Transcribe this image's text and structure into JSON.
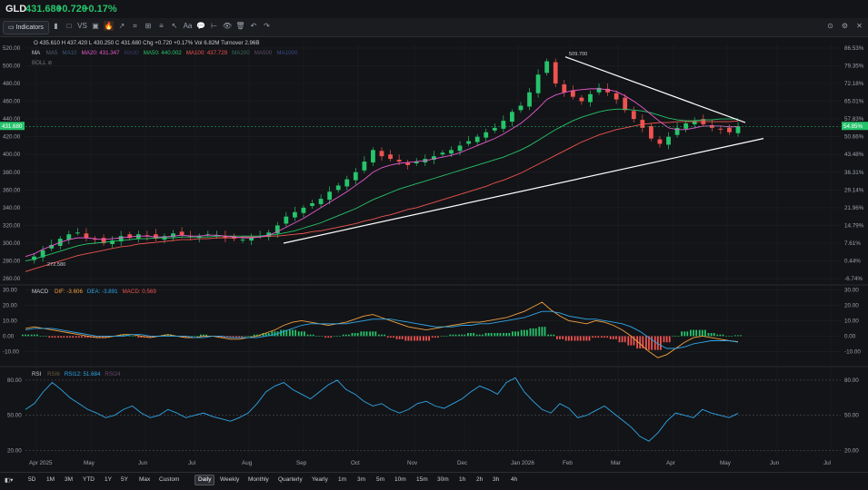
{
  "header": {
    "ticker": "GLD",
    "last": "431.680",
    "change": "+0.720",
    "change_pct": "+0.17%"
  },
  "toolbar": {
    "indicators_label": "Indicators",
    "icons": [
      "candle-type-icon",
      "square-icon",
      "compare-icon",
      "layout-icon",
      "fire-icon",
      "line-tool-icon",
      "crop-icon",
      "pattern-icon",
      "text-indent-icon",
      "cursor-icon",
      "text-tool-icon",
      "comment-icon",
      "ruler-icon",
      "eye-icon",
      "trash-icon",
      "undo-icon",
      "redo-icon"
    ],
    "right_icons": [
      "camera-icon",
      "settings-icon",
      "close-icon"
    ]
  },
  "legend": {
    "ohlc": "O 435.610  H 437.420  L 430.250  C 431.680  Chg +0.720  +0.17%  Vol 6.82M  Turnover 2.96B",
    "ma_label": "MA",
    "ma_items": [
      {
        "text": "MA5",
        "color": "#5a5a78"
      },
      {
        "text": "MA10",
        "color": "#3a5a7a"
      },
      {
        "text": "MA20: 431.347",
        "color": "#e85ad0"
      },
      {
        "text": "MA30",
        "color": "#3a3a6a"
      },
      {
        "text": "MA50: 440.002",
        "color": "#26c46b"
      },
      {
        "text": "MA100: 437.729",
        "color": "#ef5350"
      },
      {
        "text": "MA200",
        "color": "#3a6a5a"
      },
      {
        "text": "MA500",
        "color": "#5a4a6a"
      },
      {
        "text": "MA1000",
        "color": "#3a4a8a"
      }
    ],
    "boll": "BOLL",
    "macd_label": "MACD",
    "macd_items": [
      {
        "text": "DIF: -3.606",
        "color": "#f0a040"
      },
      {
        "text": "DEA: -3.891",
        "color": "#2ea6e8"
      },
      {
        "text": "MACD: 0.569",
        "color": "#ef5350"
      }
    ],
    "rsi_label": "RSI",
    "rsi_items": [
      {
        "text": "RSI6",
        "color": "#6a5a40"
      },
      {
        "text": "RSI12: 51.684",
        "color": "#2ea6e8"
      },
      {
        "text": "RSI24",
        "color": "#6a4a6a"
      }
    ]
  },
  "periods": [
    "5D",
    "1M",
    "3M",
    "YTD",
    "1Y",
    "5Y",
    "Max",
    "Custom",
    "Daily",
    "Weekly",
    "Monthly",
    "Quarterly",
    "Yearly",
    "1m",
    "3m",
    "5m",
    "10m",
    "15m",
    "30m",
    "1h",
    "2h",
    "3h",
    "4h"
  ],
  "active_period": "Daily",
  "colors": {
    "up": "#26c46b",
    "down": "#ef5350",
    "grid": "#1e2126",
    "trend": "#ffffff"
  },
  "chart_data": [
    {
      "type": "candlestick",
      "name": "price",
      "y_ticks": [
        260,
        280,
        300,
        320,
        340,
        360,
        380,
        400,
        420,
        440,
        460,
        480,
        500,
        520
      ],
      "ylim": [
        255,
        525
      ],
      "right_pct_ticks": [
        "86.53%",
        "79.35%",
        "72.18%",
        "65.01%",
        "57.83%",
        "50.66%",
        "43.48%",
        "36.31%",
        "29.14%",
        "21.96%",
        "14.79%",
        "7.61%",
        "0.44%",
        "-6.74%"
      ],
      "last_price": "431.680",
      "last_pct": "54.85%",
      "annotations": [
        {
          "text": "509.700",
          "x": "2026-01-29",
          "y": 509.7
        },
        {
          "text": "272.580",
          "x": "2025-04-03",
          "y": 272.58
        }
      ],
      "x_labels": [
        "Apr 2025",
        "May",
        "Jun",
        "Jul",
        "Aug",
        "Sep",
        "Oct",
        "Nov",
        "Dec",
        "Jan 2026",
        "Feb",
        "Mar",
        "Apr",
        "May",
        "Jun",
        "Jul"
      ],
      "close_series_approx": [
        282,
        285,
        292,
        298,
        305,
        310,
        312,
        306,
        304,
        300,
        303,
        308,
        306,
        310,
        308,
        305,
        308,
        311,
        309,
        307,
        308,
        310,
        309,
        306,
        305,
        304,
        306,
        308,
        312,
        320,
        330,
        335,
        340,
        345,
        350,
        358,
        365,
        372,
        380,
        392,
        405,
        398,
        395,
        392,
        388,
        392,
        395,
        398,
        402,
        405,
        410,
        415,
        420,
        425,
        430,
        438,
        448,
        455,
        470,
        490,
        505,
        480,
        470,
        465,
        460,
        468,
        475,
        470,
        462,
        450,
        440,
        430,
        418,
        412,
        420,
        430,
        435,
        438,
        434,
        430,
        428,
        425,
        431.68
      ],
      "ma20_approx": [
        285,
        288,
        293,
        297,
        301,
        304,
        306,
        306,
        305,
        304,
        305,
        306,
        307,
        308,
        308,
        307,
        307,
        308,
        309,
        308,
        308,
        309,
        309,
        308,
        307,
        306,
        306,
        307,
        309,
        313,
        318,
        323,
        328,
        334,
        340,
        346,
        352,
        358,
        365,
        372,
        380,
        385,
        388,
        390,
        391,
        392,
        393,
        395,
        397,
        399,
        402,
        406,
        410,
        414,
        418,
        423,
        429,
        435,
        443,
        452,
        462,
        467,
        470,
        472,
        473,
        474,
        474,
        473,
        471,
        466,
        460,
        453,
        445,
        437,
        430,
        428,
        428,
        430,
        432,
        432,
        432,
        431,
        431.35
      ],
      "ma50_approx": [
        280,
        282,
        285,
        288,
        291,
        294,
        297,
        299,
        300,
        301,
        302,
        303,
        304,
        305,
        305,
        306,
        306,
        306,
        307,
        307,
        307,
        307,
        308,
        308,
        308,
        308,
        308,
        308,
        309,
        310,
        312,
        314,
        317,
        320,
        323,
        327,
        331,
        335,
        339,
        344,
        349,
        353,
        357,
        361,
        364,
        367,
        370,
        373,
        376,
        379,
        382,
        385,
        388,
        391,
        394,
        397,
        401,
        405,
        410,
        416,
        422,
        428,
        433,
        438,
        442,
        445,
        448,
        450,
        451,
        451,
        450,
        449,
        447,
        444,
        441,
        439,
        438,
        438,
        439,
        439,
        440,
        440,
        440.0
      ],
      "ma100_approx": [
        268,
        271,
        274,
        277,
        280,
        283,
        286,
        288,
        290,
        292,
        294,
        296,
        297,
        299,
        300,
        301,
        302,
        303,
        304,
        304,
        305,
        305,
        306,
        306,
        306,
        307,
        307,
        307,
        308,
        308,
        309,
        310,
        311,
        313,
        314,
        316,
        318,
        320,
        322,
        325,
        327,
        330,
        332,
        335,
        338,
        340,
        343,
        346,
        349,
        352,
        355,
        358,
        361,
        364,
        368,
        371,
        375,
        379,
        384,
        389,
        394,
        399,
        404,
        409,
        414,
        418,
        422,
        425,
        428,
        430,
        432,
        434,
        435,
        436,
        436,
        437,
        437,
        437,
        437,
        437,
        437,
        437,
        437.73
      ]
    },
    {
      "type": "bar+line",
      "name": "MACD",
      "y_ticks": [
        -10,
        0,
        10,
        20,
        30
      ],
      "ylim": [
        -18,
        32
      ],
      "dif_approx": [
        5,
        6,
        5,
        4,
        3,
        2,
        1,
        0,
        -1,
        -1,
        0,
        1,
        1,
        0,
        -1,
        0,
        1,
        0,
        -1,
        -1,
        0,
        0,
        -1,
        -2,
        -2,
        -1,
        0,
        2,
        4,
        7,
        9,
        10,
        9,
        8,
        7,
        8,
        9,
        11,
        13,
        14,
        12,
        10,
        8,
        6,
        5,
        4,
        5,
        6,
        7,
        8,
        9,
        9,
        10,
        11,
        12,
        14,
        16,
        19,
        22,
        17,
        13,
        10,
        9,
        8,
        10,
        9,
        7,
        4,
        0,
        -5,
        -10,
        -14,
        -12,
        -8,
        -4,
        -1,
        0,
        -1,
        -2,
        -3,
        -3.606
      ],
      "dea_approx": [
        4,
        5,
        5,
        5,
        4,
        3,
        2,
        1,
        0,
        0,
        0,
        0,
        1,
        1,
        0,
        0,
        0,
        0,
        0,
        -1,
        -1,
        0,
        0,
        -1,
        -1,
        -1,
        -1,
        0,
        1,
        3,
        5,
        7,
        8,
        8,
        8,
        8,
        8,
        9,
        10,
        11,
        11,
        11,
        10,
        9,
        8,
        7,
        6,
        6,
        6,
        7,
        7,
        8,
        8,
        9,
        10,
        11,
        12,
        14,
        16,
        16,
        15,
        13,
        12,
        11,
        11,
        10,
        9,
        8,
        6,
        3,
        -1,
        -5,
        -8,
        -8,
        -7,
        -5,
        -4,
        -3,
        -3,
        -3,
        -3.891
      ],
      "hist_approx": [
        1,
        1,
        0,
        -1,
        -1,
        -1,
        -1,
        -1,
        -1,
        -1,
        0,
        1,
        0,
        -1,
        -1,
        0,
        1,
        0,
        -1,
        0,
        1,
        0,
        -1,
        -1,
        -1,
        0,
        1,
        2,
        3,
        4,
        4,
        3,
        1,
        0,
        -1,
        0,
        1,
        2,
        3,
        3,
        1,
        -1,
        -2,
        -3,
        -3,
        -3,
        -1,
        0,
        1,
        1,
        2,
        1,
        2,
        2,
        2,
        3,
        4,
        5,
        6,
        1,
        -2,
        -3,
        -3,
        -3,
        -1,
        -1,
        -2,
        -4,
        -6,
        -8,
        -9,
        -9,
        -4,
        0,
        3,
        4,
        4,
        2,
        1,
        0,
        0.569
      ]
    },
    {
      "type": "line",
      "name": "RSI",
      "y_ticks": [
        20,
        50,
        80
      ],
      "ylim": [
        15,
        90
      ],
      "rsi12_approx": [
        55,
        60,
        70,
        78,
        72,
        65,
        60,
        55,
        52,
        48,
        50,
        55,
        58,
        52,
        48,
        50,
        55,
        52,
        48,
        50,
        52,
        49,
        47,
        45,
        48,
        52,
        60,
        70,
        75,
        78,
        72,
        68,
        64,
        70,
        76,
        80,
        72,
        68,
        62,
        58,
        60,
        55,
        52,
        55,
        60,
        62,
        58,
        56,
        60,
        64,
        70,
        75,
        72,
        68,
        78,
        82,
        70,
        62,
        55,
        52,
        60,
        56,
        48,
        50,
        54,
        58,
        52,
        46,
        40,
        32,
        28,
        35,
        45,
        52,
        50,
        48,
        55,
        52,
        50,
        48,
        51.684
      ]
    }
  ]
}
